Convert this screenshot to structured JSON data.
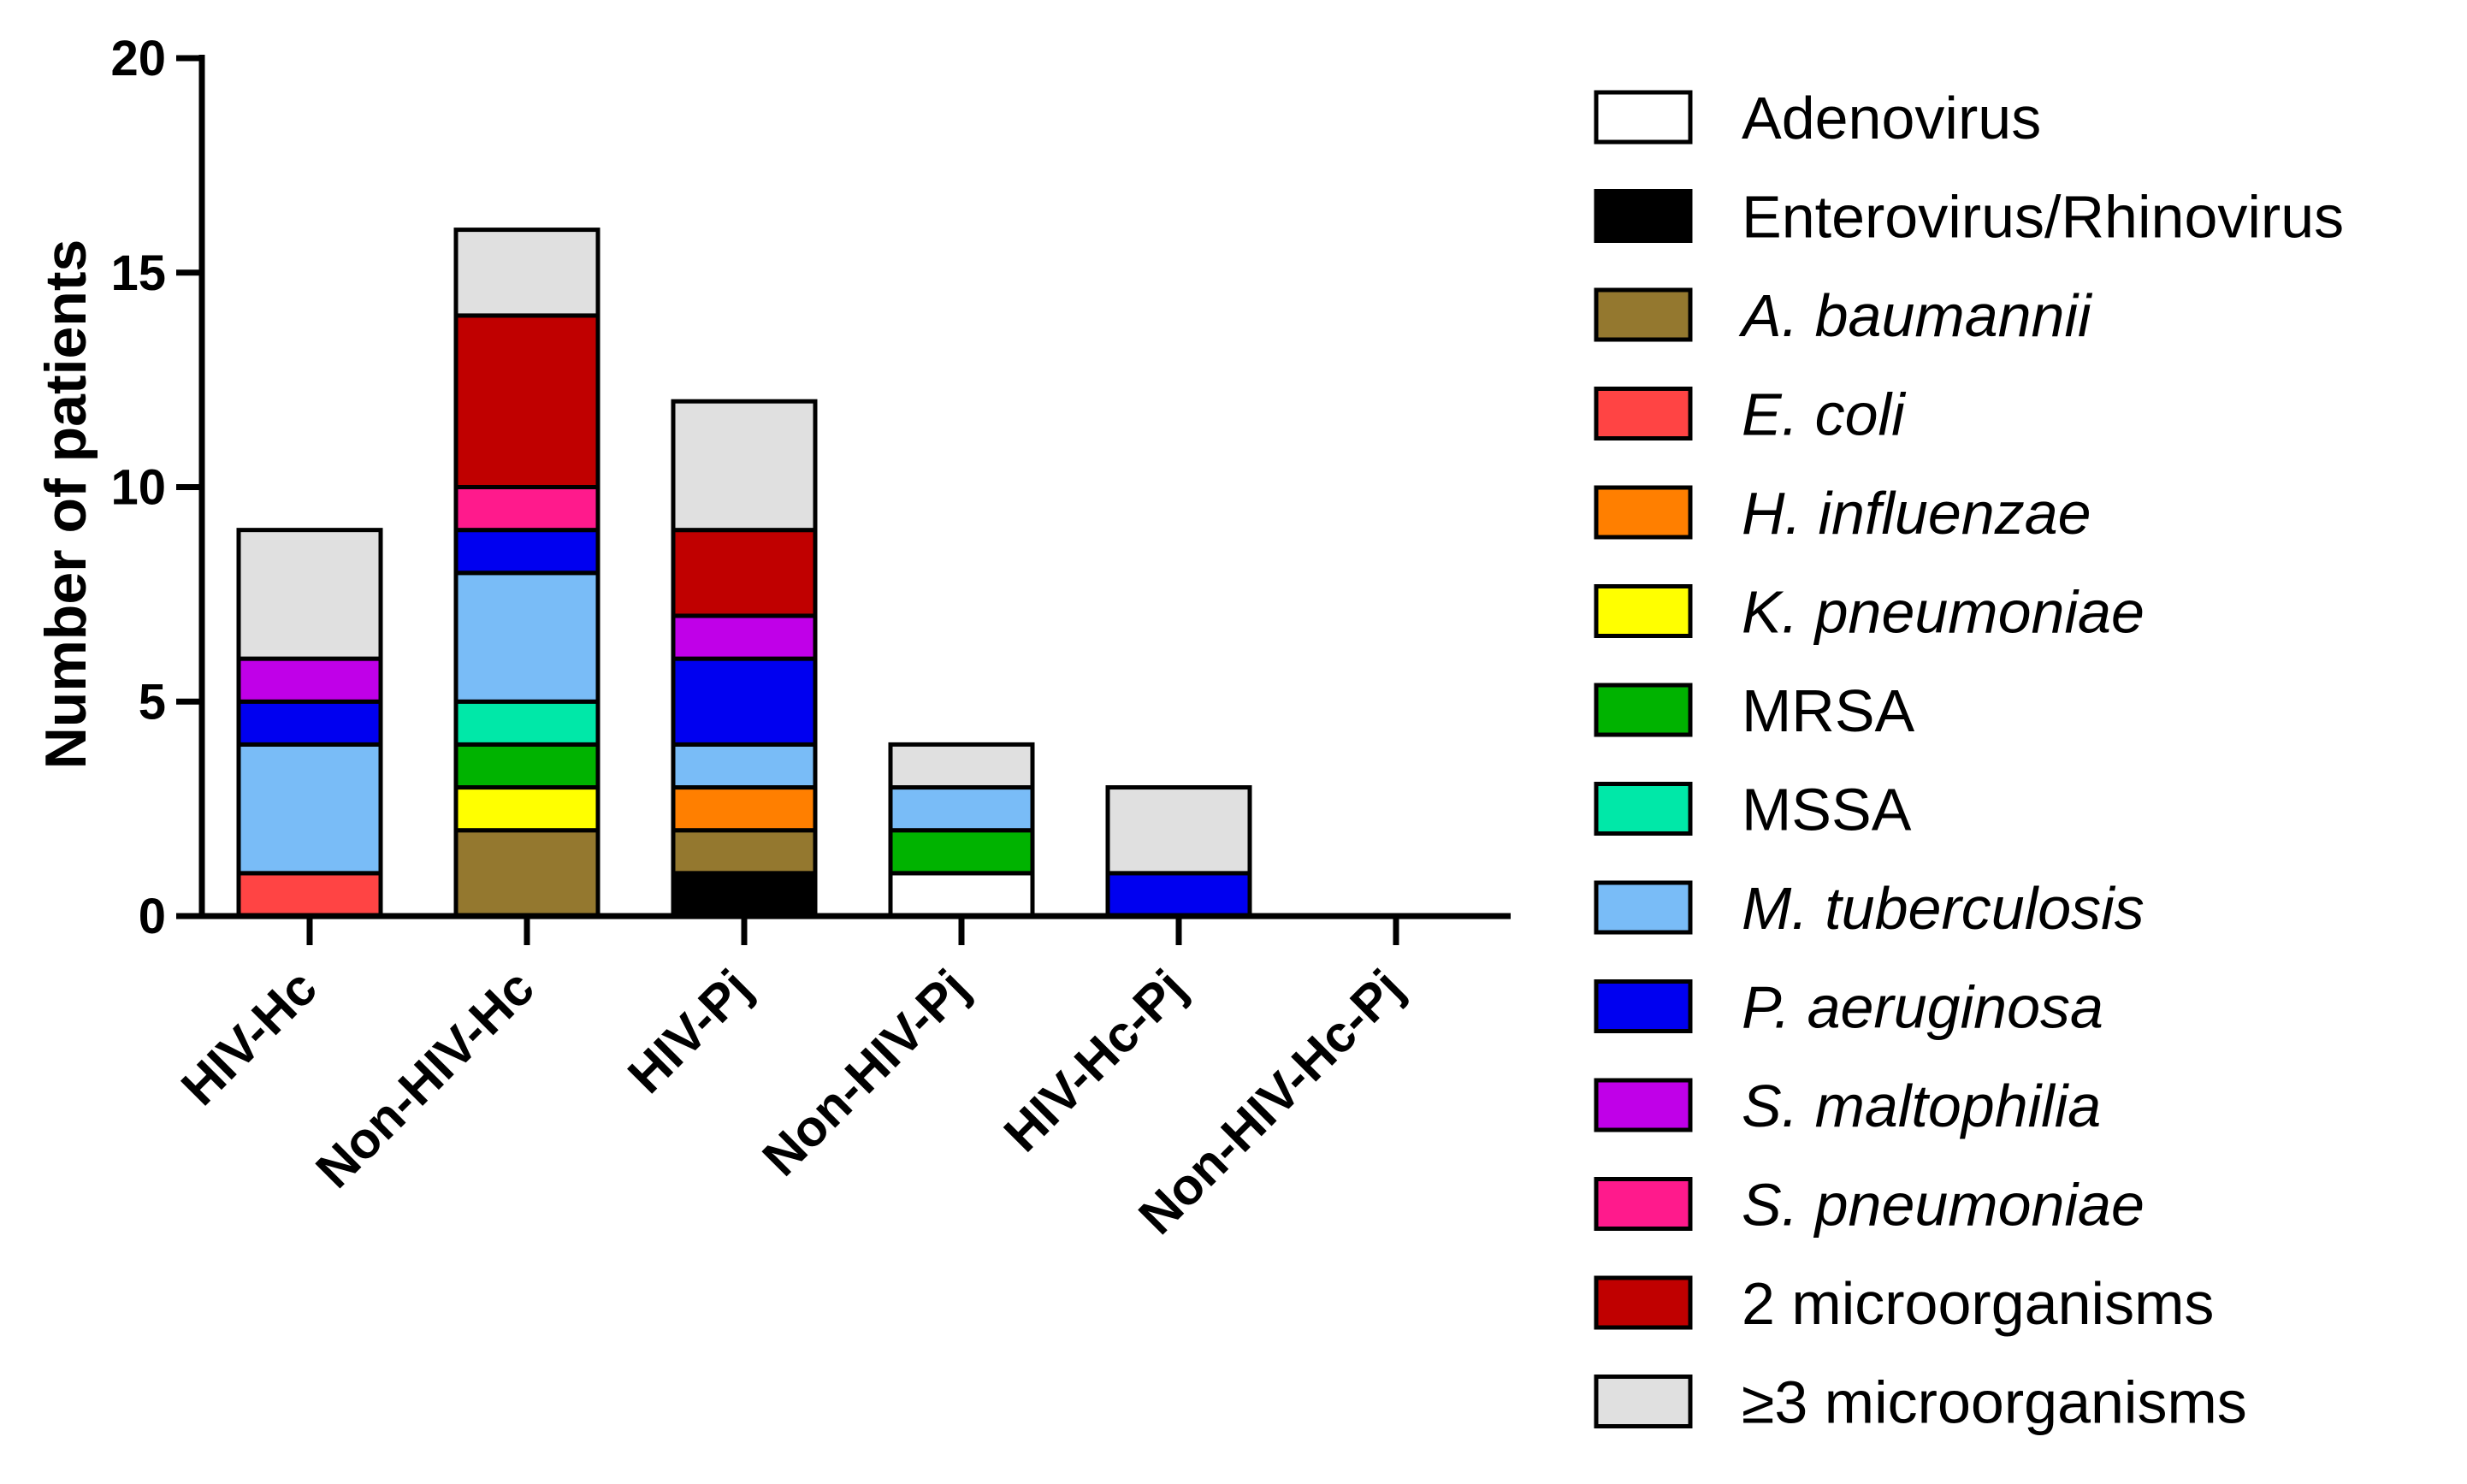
{
  "chart_data": {
    "type": "bar",
    "stacked": true,
    "title": "",
    "xlabel": "",
    "ylabel": "Number of patients",
    "ylim": [
      0,
      20
    ],
    "yticks": [
      0,
      5,
      10,
      15,
      20
    ],
    "grid": false,
    "legend_position": "right",
    "categories": [
      "HIV-Hc",
      "Non-HIV-Hc",
      "HIV-Pj",
      "Non-HIV-Pj",
      "HIV-Hc-Pj",
      "Non-HIV-Hc-Pj"
    ],
    "series": [
      {
        "name": "Adenovirus",
        "italic": false,
        "color": "#ffffff",
        "values": [
          0,
          0,
          0,
          1,
          0,
          0
        ]
      },
      {
        "name": "Enterovirus/Rhinovirus",
        "italic": false,
        "color": "#000000",
        "values": [
          0,
          0,
          1,
          0,
          0,
          0
        ]
      },
      {
        "name": "A. baumannii",
        "italic": true,
        "color": "#94782f",
        "values": [
          0,
          2,
          1,
          0,
          0,
          0
        ]
      },
      {
        "name": "E. coli",
        "italic": true,
        "color": "#ff4444",
        "values": [
          1,
          0,
          0,
          0,
          0,
          0
        ]
      },
      {
        "name": "H. influenzae",
        "italic": true,
        "color": "#ff7f00",
        "values": [
          0,
          0,
          1,
          0,
          0,
          0
        ]
      },
      {
        "name": "K. pneumoniae",
        "italic": true,
        "color": "#ffff00",
        "values": [
          0,
          1,
          0,
          0,
          0,
          0
        ]
      },
      {
        "name": "MRSA",
        "italic": false,
        "color": "#00b300",
        "values": [
          0,
          1,
          0,
          1,
          0,
          0
        ]
      },
      {
        "name": "MSSA",
        "italic": false,
        "color": "#00e8a8",
        "values": [
          0,
          1,
          0,
          0,
          0,
          0
        ]
      },
      {
        "name": "M. tuberculosis",
        "italic": true,
        "color": "#79bcf7",
        "values": [
          3,
          3,
          1,
          1,
          0,
          0
        ]
      },
      {
        "name": "P. aeruginosa",
        "italic": true,
        "color": "#0000f0",
        "values": [
          1,
          1,
          2,
          0,
          1,
          0
        ]
      },
      {
        "name": "S. maltophilia",
        "italic": true,
        "color": "#c000e8",
        "values": [
          1,
          0,
          1,
          0,
          0,
          0
        ]
      },
      {
        "name": "S. pneumoniae",
        "italic": true,
        "color": "#ff1a8c",
        "values": [
          0,
          1,
          0,
          0,
          0,
          0
        ]
      },
      {
        "name": "2 microorganisms",
        "italic": false,
        "color": "#c00000",
        "values": [
          0,
          4,
          2,
          0,
          0,
          0
        ]
      },
      {
        "name": "≥3 microorganisms",
        "italic": false,
        "color": "#e0e0e0",
        "values": [
          3,
          2,
          3,
          1,
          2,
          0
        ]
      }
    ]
  }
}
